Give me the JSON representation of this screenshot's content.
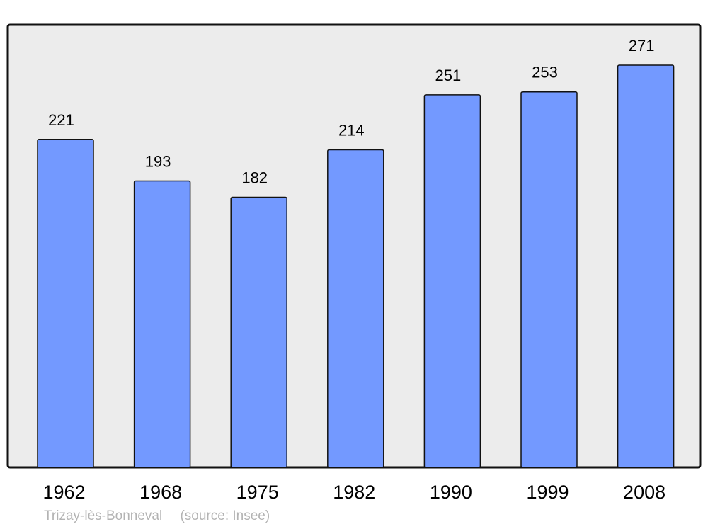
{
  "chart_data": {
    "type": "bar",
    "categories": [
      "1962",
      "1968",
      "1975",
      "1982",
      "1990",
      "1999",
      "2008"
    ],
    "values": [
      221,
      193,
      182,
      214,
      251,
      253,
      271
    ],
    "data_labels": [
      "221",
      "193",
      "182",
      "214",
      "251",
      "253",
      "271"
    ],
    "title": "",
    "xlabel": "",
    "ylabel": "",
    "ylim": [
      0,
      298
    ],
    "grid": false,
    "bar_color": "#7399ff",
    "background_color": "#ececec"
  },
  "footer": {
    "place": "Trizay-lès-Bonneval",
    "source": "(source: Insee)"
  }
}
